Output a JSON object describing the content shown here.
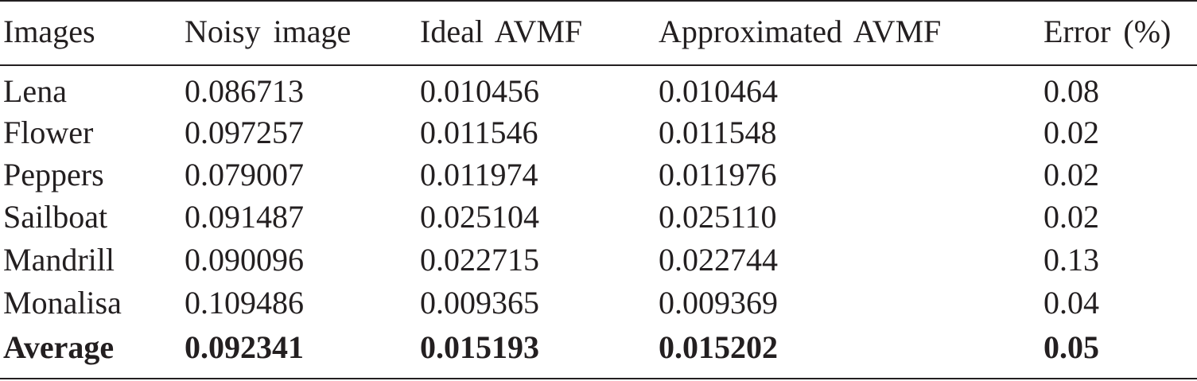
{
  "table": {
    "header": [
      "Images",
      "Noisy image",
      "Ideal AVMF",
      "Approximated AVMF",
      "Error (%)"
    ],
    "rows": [
      [
        "Lena",
        "0.086713",
        "0.010456",
        "0.010464",
        "0.08"
      ],
      [
        "Flower",
        "0.097257",
        "0.011546",
        "0.011548",
        "0.02"
      ],
      [
        "Peppers",
        "0.079007",
        "0.011974",
        "0.011976",
        "0.02"
      ],
      [
        "Sailboat",
        "0.091487",
        "0.025104",
        "0.025110",
        "0.02"
      ],
      [
        "Mandrill",
        "0.090096",
        "0.022715",
        "0.022744",
        "0.13"
      ],
      [
        "Monalisa",
        "0.109486",
        "0.009365",
        "0.009369",
        "0.04"
      ],
      [
        "Average",
        "0.092341",
        "0.015193",
        "0.015202",
        "0.05"
      ]
    ]
  }
}
